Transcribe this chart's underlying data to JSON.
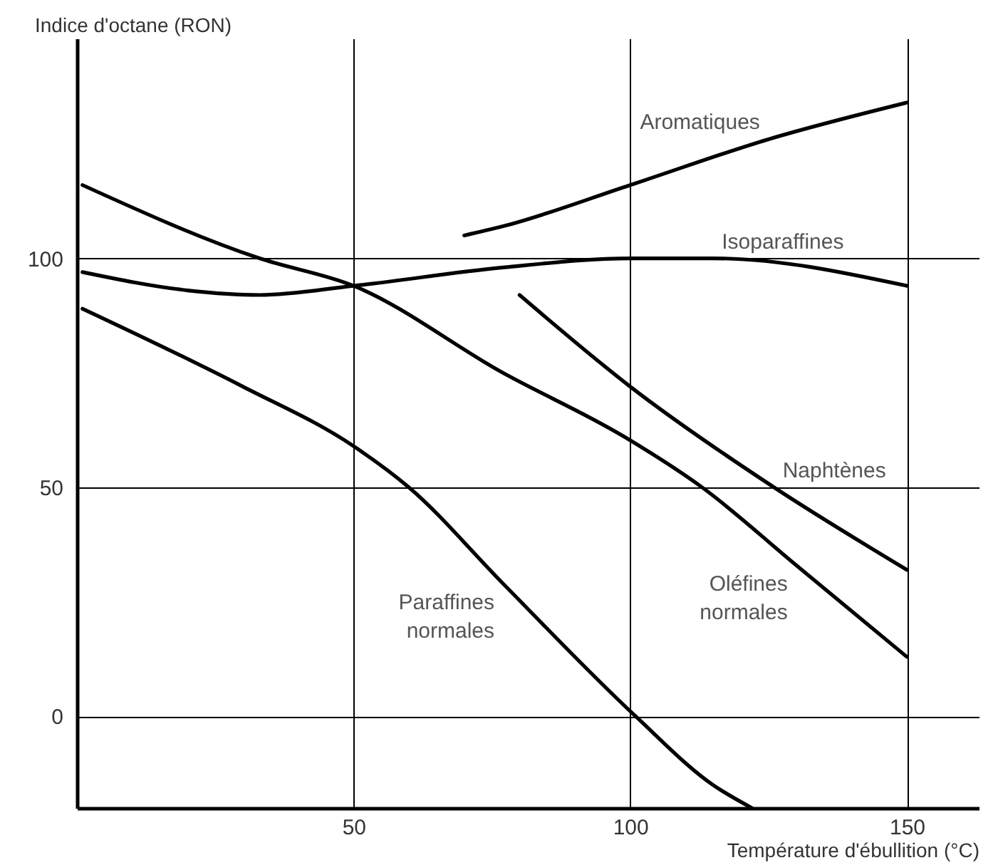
{
  "chart_data": {
    "type": "line",
    "xlabel": "Température d'ébullition (°C)",
    "ylabel": "Indice d'octane (RON)",
    "xlim": [
      0,
      163
    ],
    "ylim": [
      -20,
      148
    ],
    "xticks": [
      50,
      100,
      150
    ],
    "yticks": [
      0,
      50,
      100
    ],
    "grid": true,
    "line_style": "solid",
    "series": [
      {
        "color": "#000000",
        "x": [
          70,
          77,
          100,
          125,
          150
        ],
        "values": [
          105,
          107,
          116,
          126,
          134
        ]
      },
      {
        "color": "#000000",
        "x": [
          1,
          20,
          33,
          50,
          77,
          100,
          115,
          150
        ],
        "values": [
          97,
          93,
          92,
          94,
          98,
          100,
          100,
          94
        ]
      },
      {
        "color": "#000000",
        "x": [
          80,
          100,
          126,
          150
        ],
        "values": [
          92,
          72,
          50,
          32
        ]
      },
      {
        "color": "#000000",
        "x": [
          1,
          33,
          50,
          77,
          99,
          113,
          130,
          150
        ],
        "values": [
          116,
          100,
          94,
          75,
          61,
          50,
          33,
          13
        ]
      },
      {
        "color": "#000000",
        "x": [
          1,
          30,
          50,
          60,
          77,
          101,
          115,
          122
        ],
        "values": [
          89,
          72,
          59,
          50,
          29,
          0,
          -15,
          -20
        ]
      }
    ],
    "annotations": [
      {
        "text": "Aromatiques",
        "x": 125,
        "y": 126
      },
      {
        "text": "Isoparaffines",
        "x": 115,
        "y": 100
      },
      {
        "text": "Naphtènes",
        "x": 126,
        "y": 50
      },
      {
        "text": "Oléfines normales",
        "x": 130,
        "y": 33
      },
      {
        "text": "Paraffines normales",
        "x": 77,
        "y": 29
      }
    ]
  }
}
